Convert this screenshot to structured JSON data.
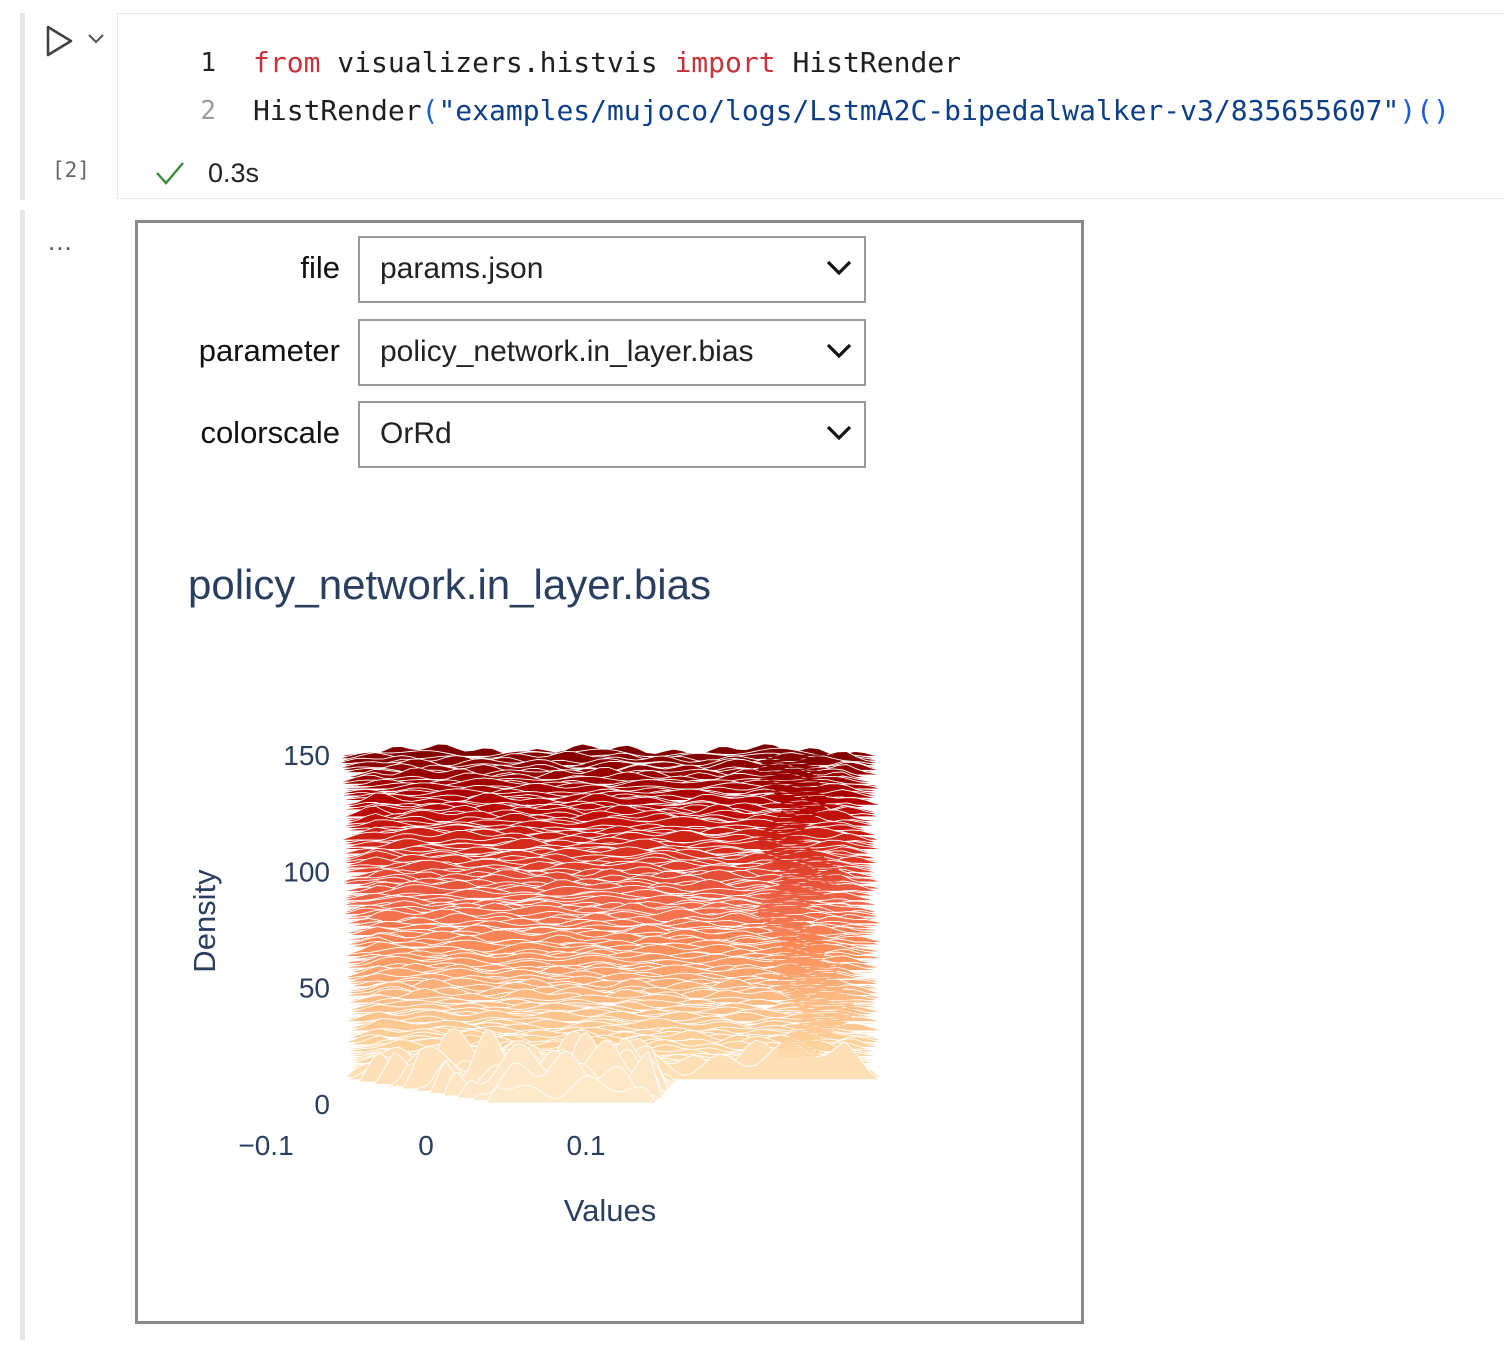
{
  "cell": {
    "execution_count": "[2]",
    "run_icon": "play-icon",
    "status_icon": "checkmark-icon",
    "status_time": "0.3s",
    "output_menu": "...",
    "lines": [
      {
        "number": "1",
        "tokens": [
          {
            "text": "from",
            "kind": "kw"
          },
          {
            "text": " visualizers.histvis ",
            "kind": "tx"
          },
          {
            "text": "import",
            "kind": "kw"
          },
          {
            "text": " HistRender",
            "kind": "tx"
          }
        ]
      },
      {
        "number": "2",
        "tokens": [
          {
            "text": "HistRender",
            "kind": "tx"
          },
          {
            "text": "(",
            "kind": "par"
          },
          {
            "text": "\"examples/mujoco/logs/LstmA2C-bipedalwalker-v3/835655607\"",
            "kind": "str"
          },
          {
            "text": ")()",
            "kind": "par"
          }
        ]
      }
    ]
  },
  "widget": {
    "file": {
      "label": "file",
      "value": "params.json"
    },
    "parameter": {
      "label": "parameter",
      "value": "policy_network.in_layer.bias"
    },
    "colorscale": {
      "label": "colorscale",
      "value": "OrRd"
    }
  },
  "colors": {
    "axis_text": "#2a3f5f",
    "keyword": "#c8333b",
    "string": "#0d3e8a",
    "check": "#3c8a3f"
  },
  "chart_data": {
    "type": "area",
    "title": "policy_network.in_layer.bias",
    "xlabel": "Values",
    "ylabel": "Density",
    "x_ticks": [
      "−0.1",
      "0",
      "0.1"
    ],
    "x_tick_values": [
      -0.1,
      0,
      0.1
    ],
    "y_ticks": [
      "0",
      "50",
      "100",
      "150"
    ],
    "y_tick_values": [
      0,
      50,
      100,
      150
    ],
    "xlim": [
      -0.15,
      0.19
    ],
    "ylim": [
      0,
      150
    ],
    "colorscale": "OrRd",
    "series_count": 150,
    "grid": false
  }
}
